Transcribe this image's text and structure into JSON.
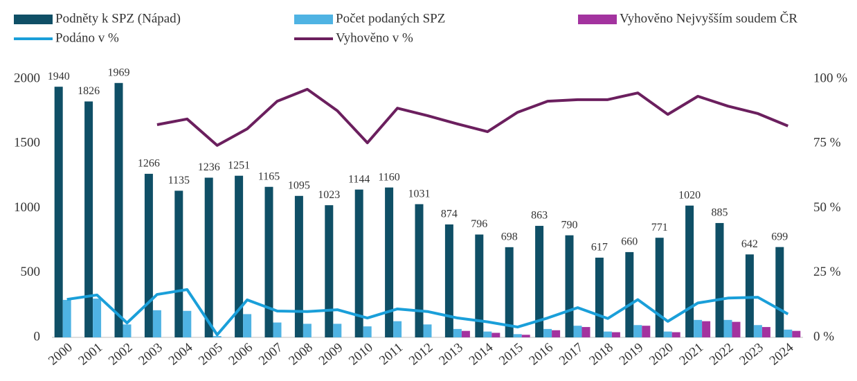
{
  "chart_data": {
    "type": "combo",
    "categories": [
      "2000",
      "2001",
      "2002",
      "2003",
      "2004",
      "2005",
      "2006",
      "2007",
      "2008",
      "2009",
      "2010",
      "2011",
      "2012",
      "2013",
      "2014",
      "2015",
      "2016",
      "2017",
      "2018",
      "2019",
      "2020",
      "2021",
      "2022",
      "2023",
      "2024"
    ],
    "series": [
      {
        "name": "Podněty k SPZ (Nápad)",
        "type": "bar",
        "color": "#0f4f66",
        "values": [
          1940,
          1826,
          1969,
          1266,
          1135,
          1236,
          1251,
          1165,
          1095,
          1023,
          1144,
          1160,
          1031,
          874,
          796,
          698,
          863,
          790,
          617,
          660,
          771,
          1020,
          885,
          642,
          699
        ]
      },
      {
        "name": "Počet podaných SPZ",
        "type": "bar",
        "color": "#4fb3e3",
        "values": [
          290,
          300,
          100,
          210,
          205,
          10,
          180,
          115,
          105,
          105,
          85,
          125,
          100,
          65,
          45,
          25,
          65,
          90,
          45,
          95,
          45,
          135,
          135,
          95,
          60
        ]
      },
      {
        "name": "Vyhověno Nejvyšším soudem ČR",
        "type": "bar",
        "color": "#a3339f",
        "values": [
          null,
          null,
          null,
          null,
          null,
          null,
          null,
          null,
          null,
          null,
          null,
          null,
          null,
          50,
          35,
          20,
          55,
          80,
          40,
          90,
          40,
          125,
          120,
          80,
          50
        ]
      },
      {
        "name": "Podáno v %",
        "type": "line",
        "axis": "y2",
        "color": "#1a9fd9",
        "values": [
          14.7,
          16.4,
          5.6,
          16.6,
          18.5,
          1,
          14.5,
          10.2,
          10,
          10.7,
          7.5,
          11,
          10,
          7.5,
          6,
          4,
          7.5,
          11.5,
          7.3,
          14.6,
          6.2,
          13.3,
          15.2,
          15.5,
          9
        ]
      },
      {
        "name": "Vyhověno v %",
        "type": "line",
        "axis": "y2",
        "color": "#6b1f5e",
        "values": [
          null,
          null,
          null,
          82.3,
          84.5,
          74.3,
          80.7,
          91.4,
          96,
          87.7,
          75.3,
          88.7,
          85.8,
          82.6,
          79.6,
          87.1,
          91.4,
          92,
          92,
          94.6,
          86.3,
          93.3,
          89.5,
          86.6,
          81.8
        ]
      }
    ],
    "ylim": [
      0,
      2000
    ],
    "yticks": [
      0,
      500,
      1000,
      1500,
      2000
    ],
    "y2lim": [
      0,
      100
    ],
    "y2ticks": [
      {
        "value": 0,
        "label": "0 %"
      },
      {
        "value": 25,
        "label": "25 %"
      },
      {
        "value": 50,
        "label": "50 %"
      },
      {
        "value": 75,
        "label": "75 %"
      },
      {
        "value": 100,
        "label": "100 %"
      }
    ],
    "grid": false,
    "legend": "top"
  }
}
